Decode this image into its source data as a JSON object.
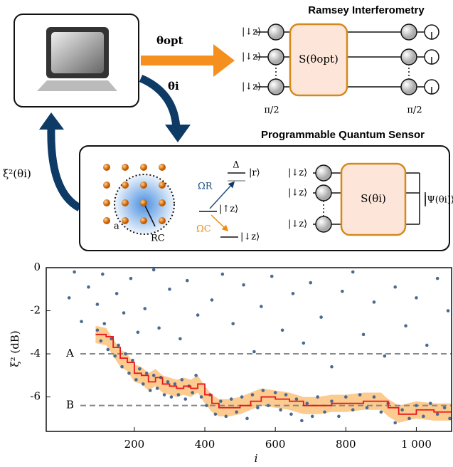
{
  "diagram": {
    "arrows": {
      "opt": "θopt",
      "step": "θi",
      "feedback": "ξ²(θi)"
    },
    "ramsey": {
      "title": "Ramsey Interferometry",
      "kets": [
        "|↓z⟩",
        "|↓z⟩",
        "|↓z⟩"
      ],
      "gate": "S(θopt)",
      "pulses": [
        "π/2",
        "π/2"
      ]
    },
    "sensor": {
      "title": "Programmable Quantum Sensor",
      "spacing": "a",
      "radius": "RC",
      "levels": {
        "delta": "Δ",
        "rydberg": "|r⟩",
        "up": "|↑z⟩",
        "down": "|↓z⟩",
        "omega_r": "ΩR",
        "omega_c": "ΩC"
      },
      "kets": [
        "|↓z⟩",
        "|↓z⟩",
        "|↓z⟩"
      ],
      "gate": "S(θi)",
      "state": "|Ψ(θi)⟩"
    }
  },
  "chart_data": {
    "type": "scatter",
    "ylabel": "ξ² (dB)",
    "xlabel": "i",
    "xlim": [
      -50,
      1100
    ],
    "ylim": [
      -7.6,
      0
    ],
    "xticks": [
      200,
      400,
      600,
      800,
      {
        "value": 1000,
        "label": "1 000"
      }
    ],
    "yticks": [
      0,
      -2,
      -4,
      -6
    ],
    "hlines": [
      {
        "value": -4,
        "label": "A"
      },
      {
        "value": -6.4,
        "label": "B"
      }
    ],
    "point_color": "#4a6a92",
    "line_color": "#e8161b",
    "band_color": "#fbcb8f",
    "points": {
      "x": [
        15,
        30,
        50,
        70,
        95,
        110,
        150,
        170,
        190,
        210,
        230,
        255,
        270,
        300,
        330,
        350,
        380,
        420,
        450,
        480,
        510,
        540,
        560,
        590,
        620,
        650,
        680,
        700,
        730,
        760,
        790,
        820,
        850,
        880,
        910,
        940,
        970,
        1000,
        1030,
        1060,
        1090,
        95,
        105,
        115,
        125,
        135,
        145,
        155,
        165,
        175,
        185,
        195,
        205,
        215,
        225,
        235,
        245,
        255,
        265,
        275,
        285,
        295,
        305,
        315,
        325,
        335,
        345,
        355,
        365,
        375,
        390,
        405,
        415,
        430,
        445,
        460,
        475,
        490,
        505,
        520,
        535,
        550,
        565,
        580,
        600,
        615,
        630,
        645,
        660,
        675,
        690,
        705,
        720,
        740,
        760,
        780,
        800,
        820,
        840,
        860,
        880,
        900,
        920,
        940,
        960,
        980,
        1000,
        1020,
        1040,
        1060,
        1080,
        1095
      ],
      "y": [
        -1.4,
        -0.2,
        -2.5,
        -0.9,
        -1.7,
        -0.3,
        -1.2,
        -2.1,
        -0.5,
        -3.0,
        -1.9,
        -0.1,
        -2.8,
        -1.0,
        -3.3,
        -0.6,
        -2.2,
        -1.5,
        -0.3,
        -2.6,
        -0.8,
        -3.9,
        -1.8,
        -0.4,
        -2.9,
        -1.2,
        -3.5,
        -0.7,
        -2.3,
        -4.6,
        -1.1,
        -0.2,
        -3.1,
        -1.6,
        -4.1,
        -0.9,
        -2.7,
        -1.4,
        -3.6,
        -0.5,
        -2.0,
        -2.9,
        -3.4,
        -2.6,
        -3.8,
        -3.3,
        -4.1,
        -3.6,
        -4.6,
        -4.0,
        -4.9,
        -4.3,
        -5.2,
        -4.7,
        -5.4,
        -4.9,
        -5.7,
        -5.0,
        -5.6,
        -5.1,
        -5.9,
        -5.3,
        -6.0,
        -5.4,
        -5.9,
        -5.2,
        -6.1,
        -5.5,
        -5.8,
        -5.0,
        -6.0,
        -6.4,
        -5.9,
        -6.8,
        -6.2,
        -6.9,
        -6.1,
        -6.7,
        -6.0,
        -7.0,
        -5.9,
        -6.5,
        -5.7,
        -6.4,
        -5.8,
        -6.6,
        -5.9,
        -6.8,
        -6.1,
        -7.1,
        -6.3,
        -6.9,
        -6.0,
        -6.7,
        -6.2,
        -6.9,
        -6.0,
        -6.6,
        -5.9,
        -6.5,
        -6.0,
        -6.7,
        -6.3,
        -7.2,
        -6.6,
        -7.0,
        -6.4,
        -6.9,
        -6.3,
        -6.8,
        -6.5,
        -7.0
      ]
    },
    "trend": {
      "x": [
        90,
        120,
        140,
        160,
        180,
        200,
        220,
        240,
        260,
        280,
        300,
        320,
        340,
        360,
        380,
        400,
        420,
        440,
        470,
        500,
        530,
        560,
        600,
        640,
        680,
        720,
        760,
        800,
        850,
        900,
        920,
        950,
        1000,
        1050,
        1100
      ],
      "y": [
        -3.1,
        -3.2,
        -3.7,
        -4.2,
        -4.4,
        -4.9,
        -5.0,
        -5.3,
        -5.1,
        -5.4,
        -5.5,
        -5.6,
        -5.5,
        -5.6,
        -5.4,
        -5.9,
        -6.3,
        -6.5,
        -6.5,
        -6.4,
        -6.2,
        -6.0,
        -6.1,
        -6.2,
        -6.4,
        -6.4,
        -6.3,
        -6.3,
        -6.2,
        -6.2,
        -6.5,
        -6.8,
        -6.6,
        -6.7,
        -6.7
      ],
      "lower": [
        -3.5,
        -3.6,
        -4.1,
        -4.6,
        -4.8,
        -5.3,
        -5.4,
        -5.7,
        -5.5,
        -5.8,
        -5.9,
        -6.0,
        -5.9,
        -6.0,
        -5.8,
        -6.3,
        -6.7,
        -6.9,
        -6.9,
        -6.8,
        -6.6,
        -6.4,
        -6.5,
        -6.6,
        -6.8,
        -6.8,
        -6.7,
        -6.7,
        -6.6,
        -6.6,
        -6.9,
        -7.2,
        -7.0,
        -7.1,
        -7.1
      ],
      "upper": [
        -2.7,
        -2.8,
        -3.3,
        -3.8,
        -4.0,
        -4.5,
        -4.6,
        -4.9,
        -4.7,
        -5.0,
        -5.1,
        -5.2,
        -5.1,
        -5.2,
        -5.0,
        -5.5,
        -5.9,
        -6.1,
        -6.1,
        -6.0,
        -5.8,
        -5.6,
        -5.7,
        -5.8,
        -6.0,
        -6.0,
        -5.9,
        -5.9,
        -5.8,
        -5.8,
        -6.1,
        -6.4,
        -6.2,
        -6.3,
        -6.3
      ]
    }
  }
}
